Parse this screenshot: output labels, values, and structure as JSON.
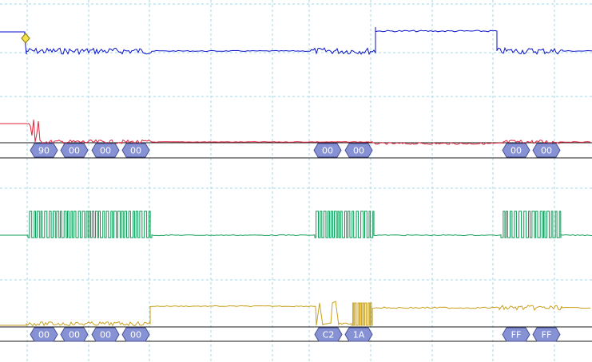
{
  "colors": {
    "background": "#ffffff",
    "grid": "#a9d6e3",
    "bus_outline": "#1a1a1a",
    "decode_fill": "#8792d4",
    "decode_stroke": "#4a5295",
    "decode_text": "#ffffff",
    "trigger_marker": "#f2e24a"
  },
  "channels": [
    {
      "name": "",
      "color": "#0a12c8",
      "kind": "analog"
    },
    {
      "name": "",
      "color": "#e0233c",
      "kind": "analog",
      "has_decode": true
    },
    {
      "name": "",
      "color": "#0a9a55",
      "kind": "analog"
    },
    {
      "name": "",
      "color": "#c9a11e",
      "kind": "analog",
      "has_decode": true
    }
  ],
  "decode_rows": [
    {
      "channel": "red",
      "labels": [
        "90",
        "00",
        "00",
        "00",
        "00",
        "00",
        "00",
        "00"
      ]
    },
    {
      "channel": "gold",
      "labels": [
        "00",
        "00",
        "00",
        "00",
        "C2",
        "1A",
        "FF",
        "FF"
      ]
    }
  ],
  "trigger_marker": {
    "icon": "diamond-icon"
  }
}
